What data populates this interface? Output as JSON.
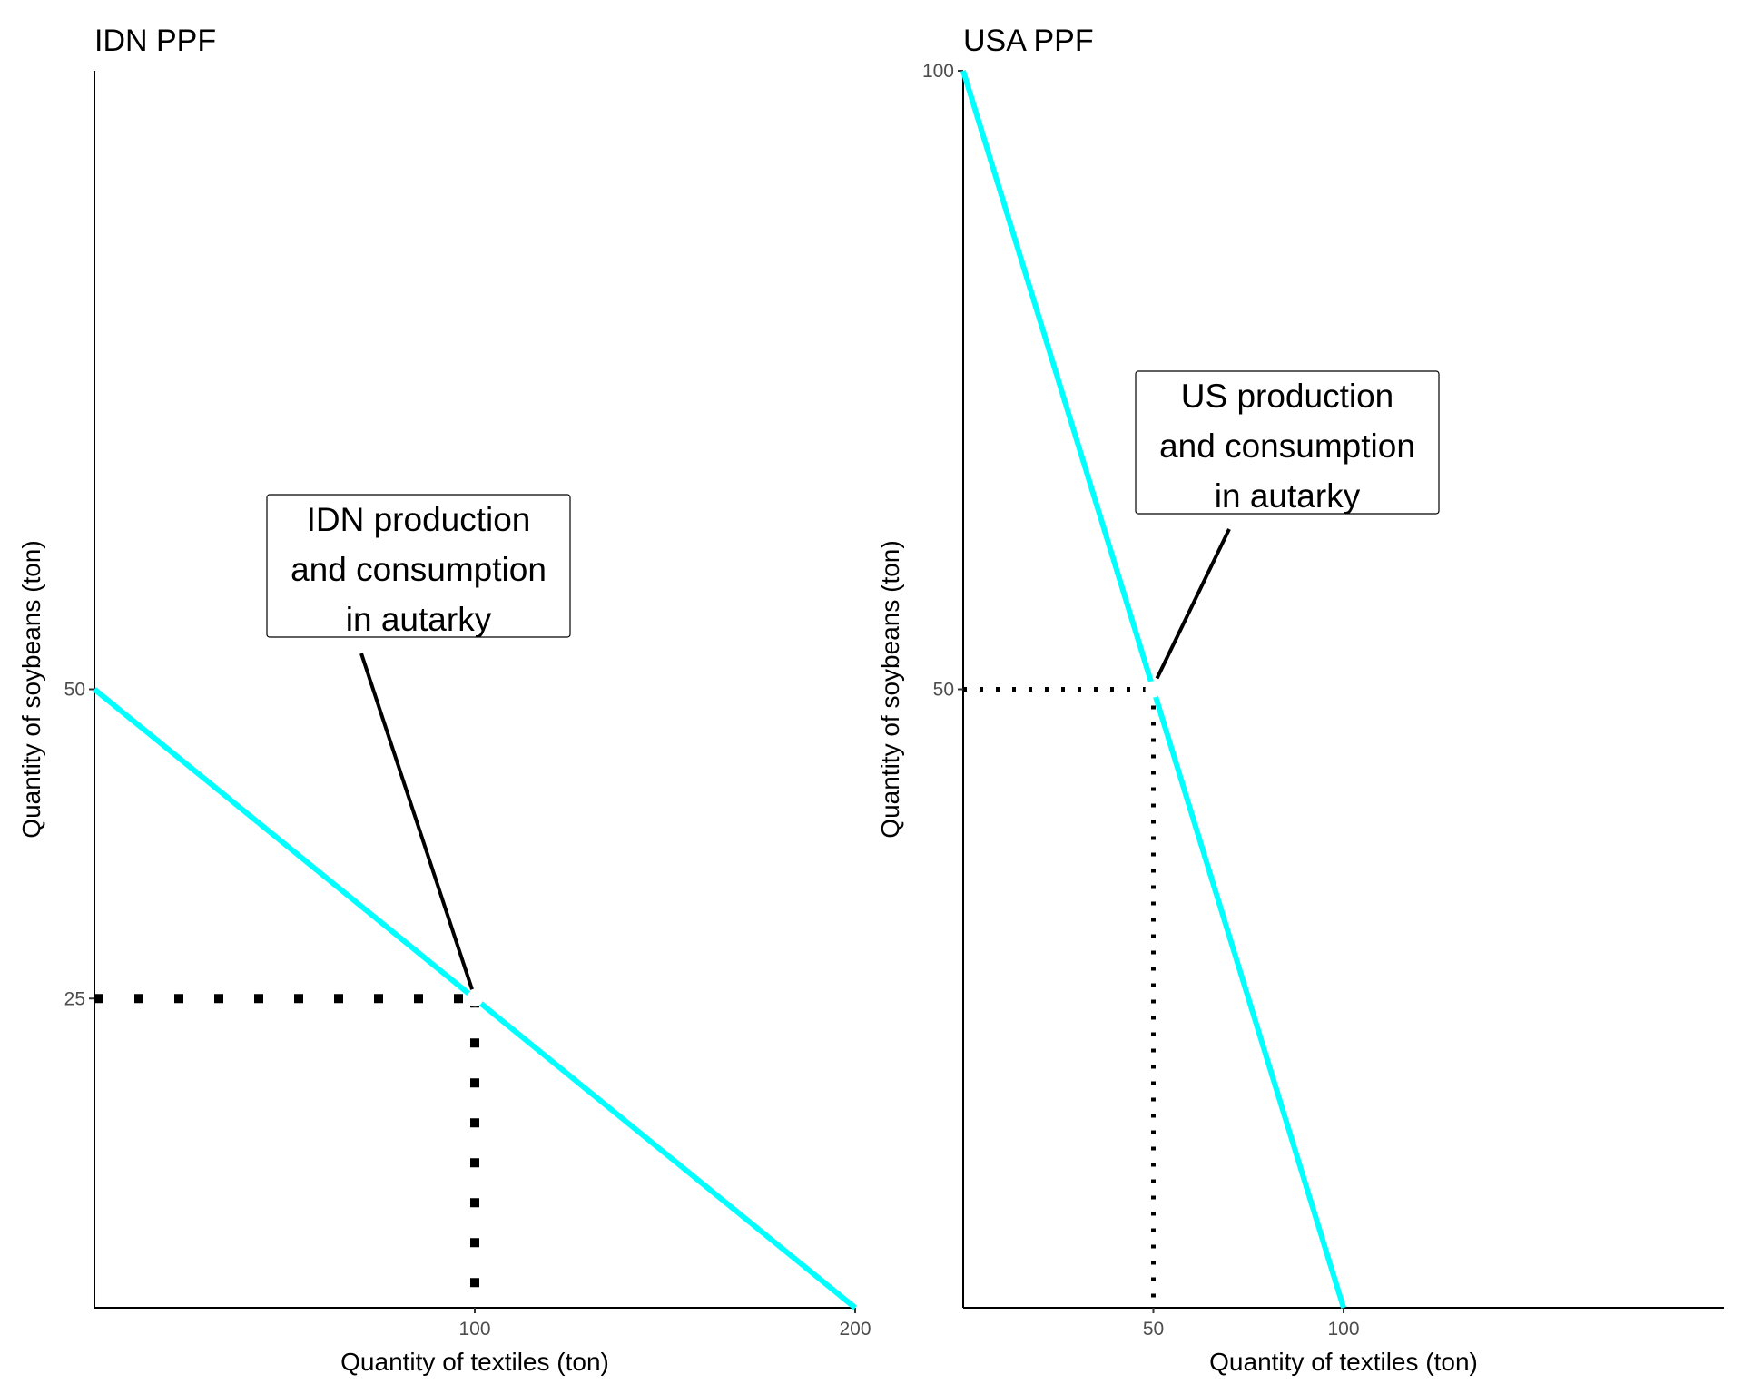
{
  "chart_data": [
    {
      "type": "line",
      "title": "IDN PPF",
      "xlabel": "Quantity of textiles (ton)",
      "ylabel": "Quantity of soybeans (ton)",
      "xlim": [
        0,
        200
      ],
      "ylim": [
        0,
        100
      ],
      "x_ticks": [
        100,
        200
      ],
      "x_tick_labels": [
        "100",
        "200"
      ],
      "y_ticks": [
        25,
        50
      ],
      "y_tick_labels": [
        "25",
        "50"
      ],
      "series": [
        {
          "x": [
            0,
            200
          ],
          "y": [
            50,
            0
          ],
          "color": "#00FFFF"
        }
      ],
      "point": {
        "x": 100,
        "y": 25
      },
      "guide_style": "dotted-heavy",
      "annotation": {
        "lines": [
          "IDN production",
          "and consumption",
          "in autarky"
        ],
        "target": {
          "x": 100,
          "y": 25
        }
      },
      "grid": false,
      "legend": "none"
    },
    {
      "type": "line",
      "title": "USA PPF",
      "xlabel": "Quantity of textiles (ton)",
      "ylabel": "Quantity of soybeans (ton)",
      "xlim": [
        0,
        200
      ],
      "ylim": [
        0,
        100
      ],
      "x_ticks": [
        50,
        100
      ],
      "x_tick_labels": [
        "50",
        "100"
      ],
      "y_ticks": [
        50,
        100
      ],
      "y_tick_labels": [
        "50",
        "100"
      ],
      "series": [
        {
          "x": [
            0,
            100
          ],
          "y": [
            100,
            0
          ],
          "color": "#00FFFF"
        }
      ],
      "point": {
        "x": 50,
        "y": 50
      },
      "guide_style": "dotted-light",
      "annotation": {
        "lines": [
          "US production",
          "and consumption",
          "in autarky"
        ],
        "target": {
          "x": 50,
          "y": 50
        }
      },
      "grid": false,
      "legend": "none"
    }
  ]
}
